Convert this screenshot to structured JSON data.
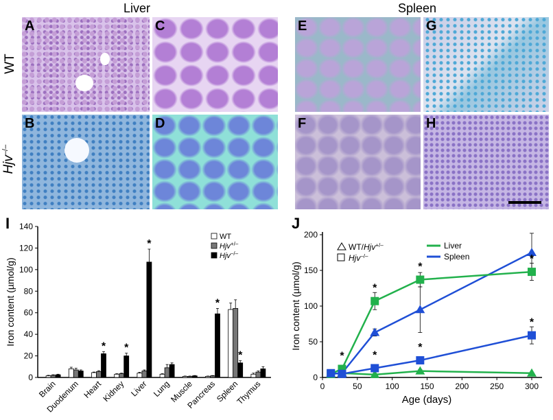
{
  "figure": {
    "liver_title": "Liver",
    "spleen_title": "Spleen",
    "row_label_wt": "WT",
    "row_label_ko": "Hjv",
    "row_label_ko_sup": "–/–",
    "micro_letters": [
      "A",
      "C",
      "E",
      "G",
      "B",
      "D",
      "F",
      "H"
    ],
    "panel_I_letter": "I",
    "panel_J_letter": "J"
  },
  "chart_data": [
    {
      "type": "bar",
      "ylabel": "Iron content (µmol/g)",
      "ylim": [
        0,
        140
      ],
      "yticks": [
        "0",
        "20",
        "40",
        "60",
        "80",
        "100",
        "120",
        "140"
      ],
      "categories": [
        "Brain",
        "Duodenum",
        "Heart",
        "Kidney",
        "Liver",
        "Lung",
        "Muscle",
        "Pancreas",
        "Spleen",
        "Thymus"
      ],
      "legend": [
        {
          "label": "WT",
          "sup": "",
          "fill": "#ffffff"
        },
        {
          "label": "Hjv",
          "sup": "+/–",
          "fill": "#777777"
        },
        {
          "label": "Hjv",
          "sup": "–/–",
          "fill": "#000000"
        }
      ],
      "series": [
        {
          "values": [
            1.5,
            8,
            4.5,
            3,
            4,
            3,
            1,
            1,
            63,
            3
          ],
          "errors": [
            0.5,
            1.5,
            0.5,
            0.5,
            0.8,
            0.5,
            0.3,
            0.3,
            6,
            1
          ]
        },
        {
          "values": [
            2,
            7,
            5.5,
            3.5,
            6,
            9,
            1,
            1.5,
            64,
            5
          ],
          "errors": [
            0.5,
            1.5,
            0.8,
            0.5,
            1,
            3,
            0.3,
            0.3,
            8,
            1
          ]
        },
        {
          "values": [
            2.5,
            6,
            22,
            20,
            107,
            12,
            1.5,
            59,
            13.5,
            8
          ],
          "errors": [
            0.5,
            1,
            2,
            2.5,
            12,
            1.5,
            0.3,
            5,
            2,
            2
          ]
        }
      ],
      "asterisk_on": [
        2,
        3,
        4,
        7,
        8
      ]
    },
    {
      "type": "line",
      "xlabel": "Age (days)",
      "ylabel": "Iron content (µmol/g)",
      "xlim": [
        0,
        300
      ],
      "ylim": [
        0,
        200
      ],
      "xticks": [
        "0",
        "50",
        "100",
        "150",
        "200",
        "250",
        "300"
      ],
      "yticks": [
        "0",
        "50",
        "100",
        "150",
        "200"
      ],
      "legend_marker_1": "WT/",
      "legend_marker_1_italic": "Hjv",
      "legend_marker_1_sup": "+/–",
      "legend_marker_2": "Hjv",
      "legend_marker_2_sup": "–/–",
      "legend_liver": "Liver",
      "legend_spleen": "Spleen",
      "colors": {
        "liver": "#22b14c",
        "spleen": "#1f4fd6"
      },
      "series": [
        {
          "name": "Liver",
          "genotype": "WT/Hjv+/-",
          "marker": "triangle",
          "color": "#22b14c",
          "x": [
            12,
            28,
            75,
            140,
            300
          ],
          "y": [
            5,
            6,
            4,
            9,
            6
          ],
          "err": [
            1,
            1,
            1,
            2,
            1
          ]
        },
        {
          "name": "Spleen",
          "genotype": "WT/Hjv+/-",
          "marker": "triangle",
          "color": "#1f4fd6",
          "x": [
            12,
            28,
            75,
            140,
            300
          ],
          "y": [
            5,
            6,
            63,
            95,
            175
          ],
          "err": [
            1,
            1,
            5,
            32,
            27
          ]
        },
        {
          "name": "Liver",
          "genotype": "Hjv-/-",
          "marker": "square",
          "color": "#22b14c",
          "x": [
            12,
            28,
            75,
            140,
            300
          ],
          "y": [
            5,
            12,
            107,
            137,
            148
          ],
          "err": [
            1,
            2,
            12,
            10,
            12
          ]
        },
        {
          "name": "Spleen",
          "genotype": "Hjv-/-",
          "marker": "square",
          "color": "#1f4fd6",
          "x": [
            12,
            28,
            75,
            140,
            300
          ],
          "y": [
            6,
            5,
            13,
            24,
            59
          ],
          "err": [
            1,
            1,
            2,
            5,
            12
          ]
        }
      ],
      "asterisks": [
        {
          "x": 28,
          "y": 12
        },
        {
          "x": 75,
          "y": 107
        },
        {
          "x": 140,
          "y": 137
        },
        {
          "x": 300,
          "y": 148
        },
        {
          "x": 75,
          "y": 13
        },
        {
          "x": 140,
          "y": 24
        },
        {
          "x": 300,
          "y": 59
        }
      ]
    }
  ]
}
